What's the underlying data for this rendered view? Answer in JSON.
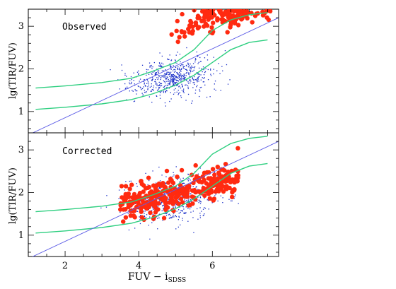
{
  "chart_data": [
    {
      "type": "scatter",
      "panel_label": "Observed",
      "xlabel": "FUV − i",
      "xlabel_subscript": "SDSS",
      "ylabel": "lg(TIR/FUV)",
      "xlim": [
        1.0,
        7.8
      ],
      "ylim": [
        0.5,
        3.4
      ],
      "x_ticks": [
        2,
        4,
        6
      ],
      "y_ticks": [
        1,
        2,
        3
      ],
      "colors": {
        "small_points": "#1a2fc8",
        "large_points": "#ff2a10",
        "envelope": "#2ecf80",
        "fit_line": "#5a5ae6"
      },
      "fit_line": {
        "x": [
          1.0,
          7.8
        ],
        "y": [
          0.45,
          3.2
        ]
      },
      "envelope_upper": {
        "x": [
          1.2,
          2.0,
          3.0,
          3.8,
          4.4,
          5.0,
          5.5,
          6.0,
          6.5,
          7.0,
          7.5
        ],
        "y": [
          1.55,
          1.6,
          1.68,
          1.78,
          1.95,
          2.15,
          2.45,
          2.9,
          3.15,
          3.27,
          3.32
        ]
      },
      "envelope_lower": {
        "x": [
          1.2,
          2.0,
          3.0,
          3.8,
          4.4,
          5.0,
          5.5,
          6.0,
          6.5,
          7.0,
          7.5
        ],
        "y": [
          1.05,
          1.1,
          1.18,
          1.28,
          1.42,
          1.62,
          1.85,
          2.15,
          2.45,
          2.62,
          2.68
        ]
      },
      "small_cloud": {
        "x_center": 4.9,
        "x_spread": 0.55,
        "y_center": 1.8,
        "y_spread": 0.22,
        "count": 600
      },
      "large_cloud": {
        "x_min": 4.8,
        "x_max": 7.6,
        "y_base": 1.55,
        "y_slope": 0.28,
        "y_spread": 0.18,
        "count": 320
      }
    },
    {
      "type": "scatter",
      "panel_label": "Corrected",
      "xlabel": "FUV − i",
      "xlabel_subscript": "SDSS",
      "ylabel": "lg(TIR/FUV)",
      "xlim": [
        1.0,
        7.8
      ],
      "ylim": [
        0.5,
        3.4
      ],
      "x_ticks": [
        2,
        4,
        6
      ],
      "y_ticks": [
        1,
        2,
        3
      ],
      "colors": {
        "small_points": "#1a2fc8",
        "large_points": "#ff2a10",
        "envelope": "#2ecf80",
        "fit_line": "#5a5ae6"
      },
      "fit_line": {
        "x": [
          1.0,
          7.8
        ],
        "y": [
          0.45,
          3.2
        ]
      },
      "envelope_upper": {
        "x": [
          1.2,
          2.0,
          3.0,
          3.8,
          4.4,
          5.0,
          5.5,
          6.0,
          6.5,
          7.0,
          7.5
        ],
        "y": [
          1.55,
          1.6,
          1.68,
          1.78,
          1.95,
          2.15,
          2.45,
          2.9,
          3.15,
          3.27,
          3.32
        ]
      },
      "envelope_lower": {
        "x": [
          1.2,
          2.0,
          3.0,
          3.8,
          4.4,
          5.0,
          5.5,
          6.0,
          6.5,
          7.0,
          7.5
        ],
        "y": [
          1.05,
          1.1,
          1.18,
          1.28,
          1.42,
          1.62,
          1.85,
          2.15,
          2.45,
          2.62,
          2.68
        ]
      },
      "small_cloud": {
        "x_center": 4.9,
        "x_spread": 0.6,
        "y_center": 1.85,
        "y_spread": 0.25,
        "count": 600
      },
      "large_cloud": {
        "x_min": 3.5,
        "x_max": 6.7,
        "y_base": 1.0,
        "y_slope": 0.2,
        "y_spread": 0.2,
        "count": 320
      }
    }
  ]
}
